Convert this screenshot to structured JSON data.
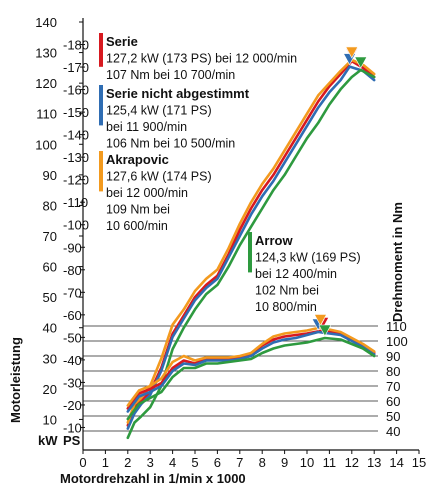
{
  "chart_data": {
    "type": "line",
    "xlabel": "Motordrehzahl in 1/min x 1000",
    "ylabel_left": "Motorleistung",
    "ylabel_right": "Drehmoment in Nm",
    "unit_kw": "kW",
    "unit_ps": "PS",
    "xlim": [
      0,
      15
    ],
    "ylim_kw": [
      0,
      140
    ],
    "ylim_ps": [
      0,
      190
    ],
    "ylim_nm": [
      40,
      110
    ],
    "x_ticks": [
      "0",
      "1",
      "2",
      "3",
      "4",
      "5",
      "6",
      "7",
      "8",
      "9",
      "10",
      "11",
      "12",
      "13",
      "14",
      "15"
    ],
    "kw_ticks": [
      "10",
      "20",
      "30",
      "40",
      "50",
      "60",
      "70",
      "80",
      "90",
      "100",
      "110",
      "120",
      "130",
      "140"
    ],
    "ps_ticks": [
      "10",
      "20",
      "30",
      "40",
      "50",
      "60",
      "70",
      "80",
      "90",
      "100",
      "110",
      "120",
      "130",
      "140",
      "150",
      "160",
      "170",
      "180"
    ],
    "nm_ticks": [
      "40",
      "50",
      "60",
      "70",
      "80",
      "90",
      "100",
      "110"
    ],
    "legend": [
      {
        "name": "Serie",
        "color": "#d71920",
        "lines": [
          "127,2 kW (173 PS) bei 12 000/min",
          "107 Nm bei 10 700/min"
        ]
      },
      {
        "name": "Serie nicht abgestimmt",
        "color": "#2f6db3",
        "lines": [
          "125,4 kW (171 PS)",
          "bei 11 900/min",
          "106 Nm bei 10 500/min"
        ]
      },
      {
        "name": "Akrapovic",
        "color": "#f39a1e",
        "lines": [
          "127,6 kW (174 PS)",
          "bei 12 000/min",
          "109 Nm bei",
          "10 600/min"
        ]
      },
      {
        "name": "Arrow",
        "color": "#2e9a3f",
        "lines": [
          "124,3 kW (169 PS)",
          "bei 12 400/min",
          "102 Nm bei",
          "10 800/min"
        ]
      }
    ],
    "series": [
      {
        "name": "Serie",
        "color": "#d71920",
        "kind": "power",
        "x": [
          2.0,
          2.3,
          2.6,
          3.0,
          3.5,
          4.0,
          4.5,
          5.0,
          5.5,
          6.0,
          6.5,
          7.0,
          7.5,
          8.0,
          8.5,
          9.0,
          9.5,
          10.0,
          10.5,
          11.0,
          11.5,
          12.0,
          12.5,
          13.0
        ],
        "values": [
          8,
          14,
          16,
          19,
          27,
          38,
          44,
          50,
          54,
          57,
          64,
          72,
          79,
          85,
          90,
          96,
          102,
          108,
          114,
          119,
          123,
          127.2,
          125,
          122
        ]
      },
      {
        "name": "Serie nicht abgestimmt",
        "color": "#2f6db3",
        "kind": "power",
        "x": [
          2.0,
          2.3,
          2.6,
          3.0,
          3.5,
          4.0,
          4.5,
          5.0,
          5.5,
          6.0,
          6.5,
          7.0,
          7.5,
          8.0,
          8.5,
          9.0,
          9.5,
          10.0,
          10.5,
          11.0,
          11.5,
          11.9,
          12.5,
          13.0
        ],
        "values": [
          7,
          12,
          15,
          18,
          26,
          37,
          43,
          49,
          53,
          56,
          63,
          70,
          77,
          83,
          88,
          94,
          100,
          106,
          112,
          117,
          121,
          125.4,
          124,
          121
        ]
      },
      {
        "name": "Akrapovic",
        "color": "#f39a1e",
        "kind": "power",
        "x": [
          2.0,
          2.3,
          2.6,
          3.0,
          3.5,
          4.0,
          4.5,
          5.0,
          5.5,
          6.0,
          6.5,
          7.0,
          7.5,
          8.0,
          8.5,
          9.0,
          9.5,
          10.0,
          10.5,
          11.0,
          11.5,
          12.0,
          12.5,
          13.0
        ],
        "values": [
          9,
          15,
          17,
          21,
          30,
          41,
          46,
          52,
          56,
          59,
          66,
          74,
          81,
          87,
          92,
          98,
          104,
          110,
          116,
          120,
          124,
          127.6,
          126,
          123
        ]
      },
      {
        "name": "Arrow",
        "color": "#2e9a3f",
        "kind": "power",
        "x": [
          2.0,
          2.3,
          2.6,
          3.0,
          3.5,
          4.0,
          4.5,
          5.0,
          5.5,
          6.0,
          6.5,
          7.0,
          7.5,
          8.0,
          8.5,
          9.0,
          9.5,
          10.0,
          10.5,
          11.0,
          11.5,
          12.0,
          12.4,
          13.0
        ],
        "values": [
          4,
          9,
          11,
          14,
          21,
          33,
          40,
          46,
          51,
          54,
          60,
          67,
          73,
          79,
          85,
          90,
          96,
          102,
          107,
          113,
          118,
          122,
          124.3,
          122
        ]
      },
      {
        "name": "Serie",
        "color": "#d71920",
        "kind": "torque",
        "x": [
          2.0,
          2.5,
          3.0,
          3.5,
          4.0,
          4.5,
          5.0,
          5.5,
          6.0,
          6.5,
          7.0,
          7.5,
          8.0,
          8.5,
          9.0,
          9.5,
          10.0,
          10.7,
          11.5,
          12.0,
          12.5,
          13.0
        ],
        "values": [
          55,
          65,
          68,
          72,
          82,
          87,
          85,
          88,
          88,
          88,
          89,
          91,
          97,
          101,
          103,
          104,
          105,
          107,
          105,
          101,
          97,
          92
        ]
      },
      {
        "name": "Serie nicht abgestimmt",
        "color": "#2f6db3",
        "kind": "torque",
        "x": [
          2.0,
          2.5,
          3.0,
          3.5,
          4.0,
          4.5,
          5.0,
          5.5,
          6.0,
          6.5,
          7.0,
          7.5,
          8.0,
          8.5,
          9.0,
          9.5,
          10.0,
          10.5,
          11.5,
          12.0,
          12.5,
          13.0
        ],
        "values": [
          53,
          63,
          66,
          70,
          80,
          85,
          84,
          87,
          87,
          87,
          88,
          90,
          95,
          99,
          101,
          102,
          104,
          106,
          104,
          100,
          96,
          91
        ]
      },
      {
        "name": "Akrapovic",
        "color": "#f39a1e",
        "kind": "torque",
        "x": [
          2.0,
          2.5,
          3.0,
          3.5,
          4.0,
          4.5,
          5.0,
          5.5,
          6.0,
          6.5,
          7.0,
          7.5,
          8.0,
          8.5,
          9.0,
          9.5,
          10.0,
          10.6,
          11.5,
          12.0,
          12.5,
          13.0
        ],
        "values": [
          57,
          67,
          70,
          75,
          86,
          90,
          87,
          89,
          89,
          89,
          90,
          92,
          98,
          103,
          105,
          106,
          107,
          109,
          106,
          102,
          98,
          93
        ]
      },
      {
        "name": "Arrow",
        "color": "#2e9a3f",
        "kind": "torque",
        "x": [
          2.0,
          2.5,
          3.0,
          3.5,
          4.0,
          4.5,
          5.0,
          5.5,
          6.0,
          6.5,
          7.0,
          7.5,
          8.0,
          8.5,
          9.0,
          9.5,
          10.0,
          10.8,
          11.5,
          12.0,
          12.5,
          13.0
        ],
        "values": [
          48,
          58,
          62,
          66,
          76,
          82,
          82,
          85,
          85,
          86,
          87,
          88,
          92,
          95,
          97,
          98,
          99,
          102,
          101,
          98,
          95,
          90
        ]
      }
    ],
    "peaks": [
      {
        "name": "Serie",
        "color": "#d71920",
        "kind": "power",
        "x": 12.0,
        "value": 127.2
      },
      {
        "name": "Serie nicht abgestimmt",
        "color": "#2f6db3",
        "kind": "power",
        "x": 11.9,
        "value": 125.4
      },
      {
        "name": "Akrapovic",
        "color": "#f39a1e",
        "kind": "power",
        "x": 12.0,
        "value": 127.6
      },
      {
        "name": "Arrow",
        "color": "#2e9a3f",
        "kind": "power",
        "x": 12.4,
        "value": 124.3
      },
      {
        "name": "Serie",
        "color": "#d71920",
        "kind": "torque",
        "x": 10.7,
        "value": 107
      },
      {
        "name": "Serie nicht abgestimmt",
        "color": "#2f6db3",
        "kind": "torque",
        "x": 10.5,
        "value": 106
      },
      {
        "name": "Akrapovic",
        "color": "#f39a1e",
        "kind": "torque",
        "x": 10.6,
        "value": 109
      },
      {
        "name": "Arrow",
        "color": "#2e9a3f",
        "kind": "torque",
        "x": 10.8,
        "value": 102
      }
    ]
  }
}
